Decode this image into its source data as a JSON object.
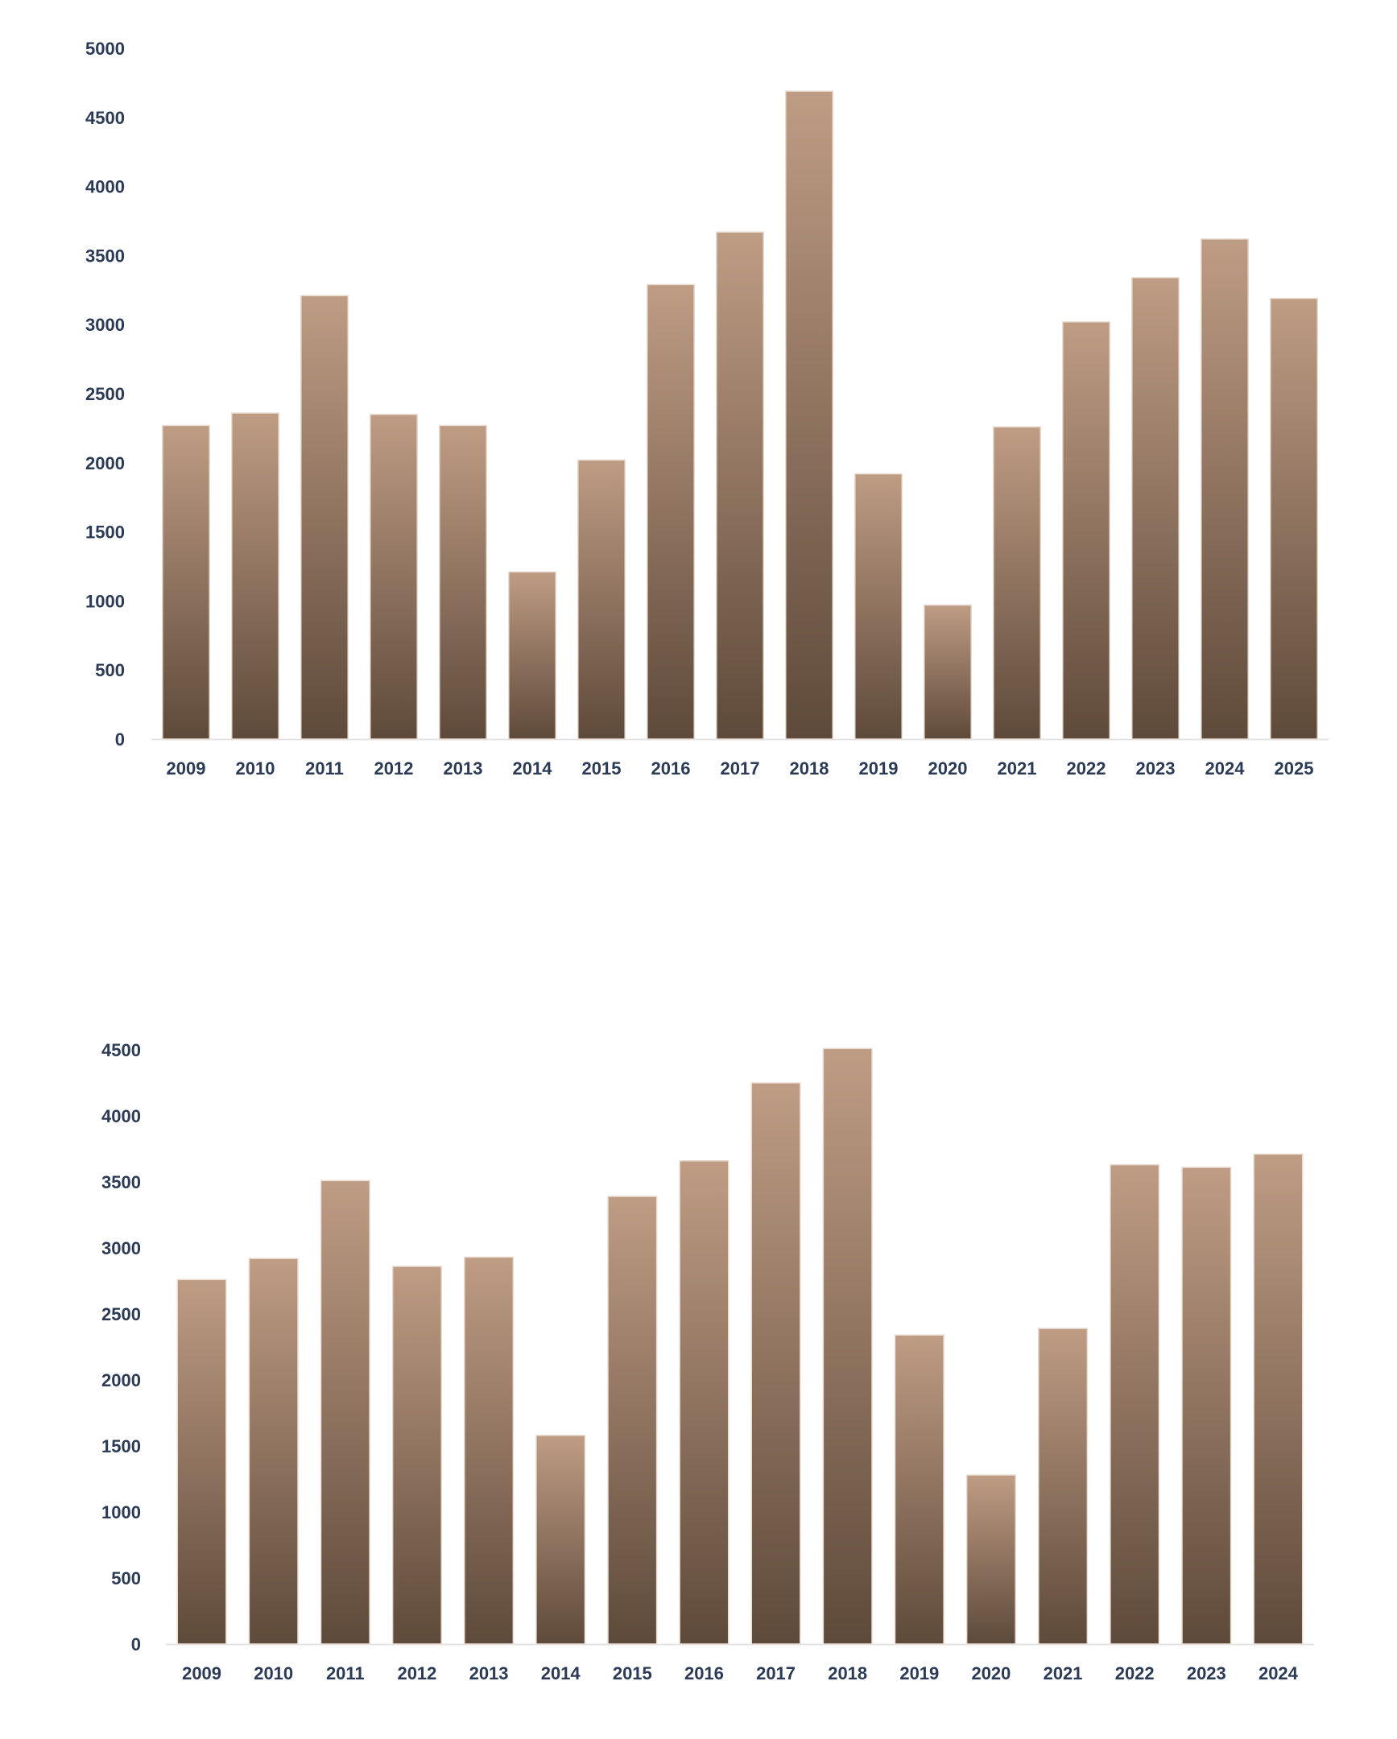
{
  "colors": {
    "label": "#2b3a55",
    "bar_top": "#bf9c84",
    "bar_bottom": "#5e4a3a",
    "bar_edge": "#e9ddd3",
    "axis": "#e3e3e3"
  },
  "chart_data": [
    {
      "type": "bar",
      "title": "",
      "xlabel": "",
      "ylabel": "",
      "ylim": [
        0,
        5000
      ],
      "yticks": [
        "0",
        "500",
        "1000",
        "1500",
        "2000",
        "2500",
        "3000",
        "3500",
        "4000",
        "4500",
        "5000"
      ],
      "grid": false,
      "categories": [
        "2009",
        "2010",
        "2011",
        "2012",
        "2013",
        "2014",
        "2015",
        "2016",
        "2017",
        "2018",
        "2019",
        "2020",
        "2021",
        "2022",
        "2023",
        "2024",
        "2025"
      ],
      "values": [
        2270,
        2360,
        3210,
        2350,
        2270,
        1210,
        2020,
        3290,
        3670,
        4690,
        1920,
        970,
        2260,
        3020,
        3340,
        3620,
        3190
      ]
    },
    {
      "type": "bar",
      "title": "",
      "xlabel": "",
      "ylabel": "",
      "ylim": [
        0,
        4500
      ],
      "yticks": [
        "0",
        "500",
        "1000",
        "1500",
        "2000",
        "2500",
        "3000",
        "3500",
        "4000",
        "4500"
      ],
      "grid": false,
      "categories": [
        "2009",
        "2010",
        "2011",
        "2012",
        "2013",
        "2014",
        "2015",
        "2016",
        "2017",
        "2018",
        "2019",
        "2020",
        "2021",
        "2022",
        "2023",
        "2024"
      ],
      "values": [
        2760,
        2920,
        3510,
        2860,
        2930,
        1580,
        3390,
        3660,
        4250,
        4510,
        2340,
        1280,
        2390,
        3630,
        3610,
        3710
      ]
    }
  ]
}
